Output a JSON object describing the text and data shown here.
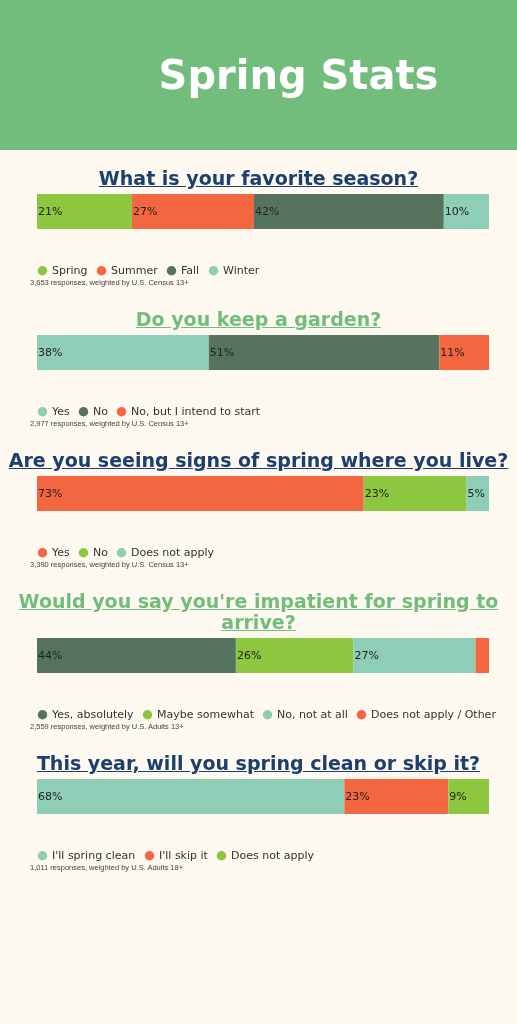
{
  "chart_data": [
    {
      "type": "other",
      "title": "Spring Stats"
    },
    {
      "type": "bar",
      "title": "What is your favorite season?",
      "orientation": "horizontal",
      "stacked": true,
      "categories": [
        null
      ],
      "legend": "bottom",
      "annotations": [
        "3,653 responses, weighted by U.S. Census 13+"
      ],
      "series": [
        {
          "name": "Spring",
          "color": "#8dc63f",
          "values": [
            21
          ],
          "value_labels": [
            "21%"
          ]
        },
        {
          "name": "Summer",
          "color": "#f26640",
          "values": [
            27
          ],
          "value_labels": [
            "27%"
          ]
        },
        {
          "name": "Fall",
          "color": "#567360",
          "values": [
            42
          ],
          "value_labels": [
            "42%"
          ]
        },
        {
          "name": "Winter",
          "color": "#8ecdb6",
          "values": [
            10
          ],
          "value_labels": [
            "10%"
          ]
        }
      ]
    },
    {
      "type": "bar",
      "title": "Do you keep a garden?",
      "orientation": "horizontal",
      "stacked": true,
      "categories": [
        null
      ],
      "legend": "bottom",
      "annotations": [
        "2,977 responses, weighted by U.S. Census 13+"
      ],
      "series": [
        {
          "name": "Yes",
          "color": "#8ecdb6",
          "values": [
            38
          ],
          "value_labels": [
            "38%"
          ]
        },
        {
          "name": "No",
          "color": "#567360",
          "values": [
            51
          ],
          "value_labels": [
            "51%"
          ]
        },
        {
          "name": "No, but I intend to start",
          "color": "#f26640",
          "values": [
            11
          ],
          "value_labels": [
            "11%"
          ]
        }
      ]
    },
    {
      "type": "bar",
      "title": "Are you seeing signs of spring where you live?",
      "orientation": "horizontal",
      "stacked": true,
      "categories": [
        null
      ],
      "legend": "bottom",
      "annotations": [
        "3,390 responses, weighted by U.S. Census 13+"
      ],
      "series": [
        {
          "name": "Yes",
          "color": "#f26640",
          "values": [
            73
          ],
          "value_labels": [
            "73%"
          ]
        },
        {
          "name": "No",
          "color": "#8dc63f",
          "values": [
            23
          ],
          "value_labels": [
            "23%"
          ]
        },
        {
          "name": "Does not apply",
          "color": "#8ecdb6",
          "values": [
            5
          ],
          "value_labels": [
            "5%"
          ]
        }
      ]
    },
    {
      "type": "bar",
      "title": "Would you say you're impatient for spring to arrive?",
      "orientation": "horizontal",
      "stacked": true,
      "categories": [
        null
      ],
      "legend": "bottom",
      "annotations": [
        "2,559 responses, weighted by U.S. Adults 13+"
      ],
      "series": [
        {
          "name": "Yes, absolutely",
          "color": "#567360",
          "values": [
            44
          ],
          "value_labels": [
            "44%"
          ]
        },
        {
          "name": "Maybe somewhat",
          "color": "#8dc63f",
          "values": [
            26
          ],
          "value_labels": [
            "26%"
          ]
        },
        {
          "name": "No, not at all",
          "color": "#8ecdb6",
          "values": [
            27
          ],
          "value_labels": [
            "27%"
          ]
        },
        {
          "name": "Does not apply / Other",
          "color": "#f26640",
          "values": [
            3
          ],
          "value_labels": [
            null
          ]
        }
      ]
    },
    {
      "type": "bar",
      "title": "This year, will you spring clean or skip it?",
      "orientation": "horizontal",
      "stacked": true,
      "categories": [
        null
      ],
      "legend": "bottom",
      "annotations": [
        "1,011 responses, weighted by U.S. Adults 18+"
      ],
      "series": [
        {
          "name": "I'll spring clean",
          "color": "#8ecdb6",
          "values": [
            68
          ],
          "value_labels": [
            "68%"
          ]
        },
        {
          "name": "I'll skip it",
          "color": "#f26640",
          "values": [
            23
          ],
          "value_labels": [
            "23%"
          ]
        },
        {
          "name": "Does not apply",
          "color": "#8dc63f",
          "values": [
            9
          ],
          "value_labels": [
            "9%"
          ]
        }
      ]
    }
  ]
}
